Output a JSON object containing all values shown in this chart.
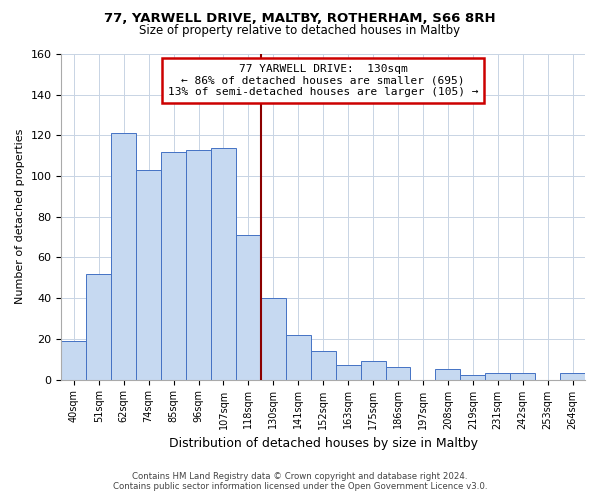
{
  "title": "77, YARWELL DRIVE, MALTBY, ROTHERHAM, S66 8RH",
  "subtitle": "Size of property relative to detached houses in Maltby",
  "xlabel": "Distribution of detached houses by size in Maltby",
  "ylabel": "Number of detached properties",
  "bar_labels": [
    "40sqm",
    "51sqm",
    "62sqm",
    "74sqm",
    "85sqm",
    "96sqm",
    "107sqm",
    "118sqm",
    "130sqm",
    "141sqm",
    "152sqm",
    "163sqm",
    "175sqm",
    "186sqm",
    "197sqm",
    "208sqm",
    "219sqm",
    "231sqm",
    "242sqm",
    "253sqm",
    "264sqm"
  ],
  "bar_values": [
    19,
    52,
    121,
    103,
    112,
    113,
    114,
    71,
    40,
    22,
    14,
    7,
    9,
    6,
    0,
    5,
    2,
    3,
    3,
    0,
    3
  ],
  "bar_color": "#c6d9f1",
  "bar_edge_color": "#4472c4",
  "marker_index": 8,
  "marker_label": "130sqm",
  "marker_line_color": "#8b0000",
  "annotation_title": "77 YARWELL DRIVE:  130sqm",
  "annotation_line1": "← 86% of detached houses are smaller (695)",
  "annotation_line2": "13% of semi-detached houses are larger (105) →",
  "annotation_box_color": "#ffffff",
  "annotation_box_edge_color": "#cc0000",
  "ylim": [
    0,
    160
  ],
  "yticks": [
    0,
    20,
    40,
    60,
    80,
    100,
    120,
    140,
    160
  ],
  "footer_line1": "Contains HM Land Registry data © Crown copyright and database right 2024.",
  "footer_line2": "Contains public sector information licensed under the Open Government Licence v3.0.",
  "background_color": "#ffffff",
  "grid_color": "#c8d4e4"
}
